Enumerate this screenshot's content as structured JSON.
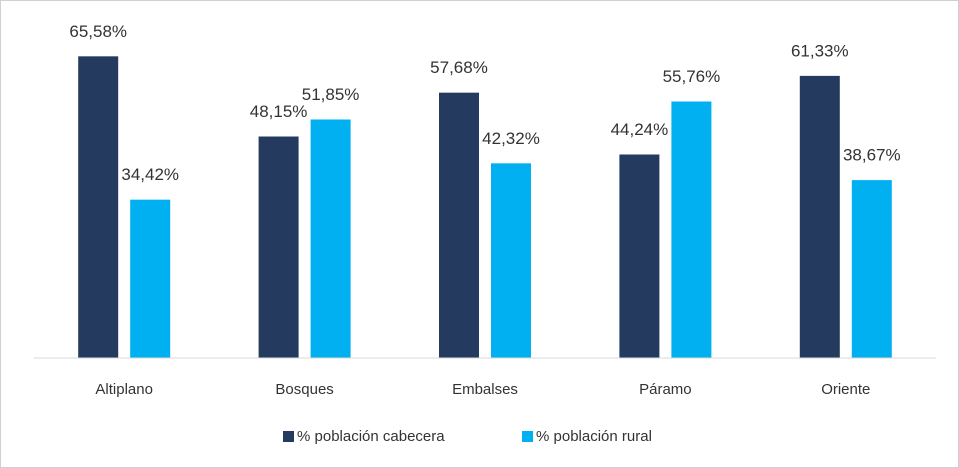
{
  "chart_data": {
    "type": "bar",
    "categories": [
      "Altiplano",
      "Bosques",
      "Embalses",
      "Páramo",
      "Oriente"
    ],
    "series": [
      {
        "name": "% población cabecera",
        "color": "#243a5e",
        "values": [
          65.58,
          48.15,
          57.68,
          44.24,
          61.33
        ],
        "value_labels": [
          "65,58%",
          "48,15%",
          "57,68%",
          "44,24%",
          "61,33%"
        ]
      },
      {
        "name": "% población rural",
        "color": "#00b0f0",
        "values": [
          34.42,
          51.85,
          42.32,
          55.76,
          38.67
        ],
        "value_labels": [
          "34,42%",
          "51,85%",
          "42,32%",
          "55,76%",
          "38,67%"
        ]
      }
    ],
    "ylim": [
      0,
      70
    ],
    "grid": false,
    "legend": "bottom"
  }
}
